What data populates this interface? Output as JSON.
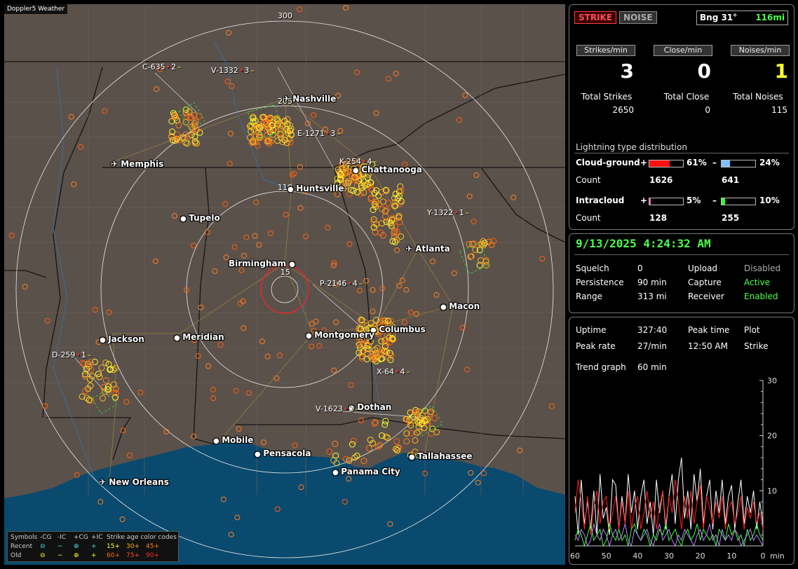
{
  "map": {
    "title": "Doppler5 Weather",
    "range_rings": [
      "300",
      "205",
      "110",
      "15"
    ],
    "cities": [
      {
        "name": "Nashville",
        "airport": true
      },
      {
        "name": "Memphis",
        "airport": true
      },
      {
        "name": "Chattanooga",
        "airport": false
      },
      {
        "name": "Huntsville",
        "airport": false
      },
      {
        "name": "Tupelo",
        "airport": false
      },
      {
        "name": "Atlanta",
        "airport": true
      },
      {
        "name": "Birmingham",
        "airport": false
      },
      {
        "name": "Macon",
        "airport": false
      },
      {
        "name": "Columbus",
        "airport": false
      },
      {
        "name": "Montgomery",
        "airport": false
      },
      {
        "name": "Jackson",
        "airport": false
      },
      {
        "name": "Meridian",
        "airport": false
      },
      {
        "name": "Dothan",
        "airport": false
      },
      {
        "name": "Mobile",
        "airport": false
      },
      {
        "name": "Pensacola",
        "airport": false
      },
      {
        "name": "Tallahassee",
        "airport": false
      },
      {
        "name": "Panama City",
        "airport": false
      },
      {
        "name": "New Orleans",
        "airport": true
      }
    ],
    "storm_labels": [
      {
        "label": "C-635",
        "value": "2"
      },
      {
        "label": "V-1332",
        "value": "3"
      },
      {
        "label": "E-1271",
        "value": "3"
      },
      {
        "label": "K-254",
        "value": "4"
      },
      {
        "label": "Y-1322",
        "value": "1"
      },
      {
        "label": "P-2146",
        "value": "4"
      },
      {
        "label": "D-259",
        "value": "1"
      },
      {
        "label": "X-64",
        "value": "4"
      },
      {
        "label": "V-1623",
        "value": "2"
      }
    ],
    "legend": {
      "headers": [
        "Symbols",
        "-CG",
        "-IC",
        "+CG",
        "+IC",
        "Strike age color codes"
      ],
      "rows": [
        {
          "label": "Recent",
          "codes": [
            "15+",
            "30+",
            "45+"
          ]
        },
        {
          "label": "Old",
          "codes": [
            "60+",
            "75+",
            "90+"
          ]
        }
      ]
    }
  },
  "stats": {
    "strike_button": "STRIKE",
    "noise_button": "NOISE",
    "bearing": "Bng 31°",
    "distance": "116mi",
    "rates": [
      {
        "label": "Strikes/min",
        "value": "3"
      },
      {
        "label": "Close/min",
        "value": "0"
      },
      {
        "label": "Noises/min",
        "value": "1"
      }
    ],
    "totals": [
      {
        "label": "Total Strikes",
        "value": "2650"
      },
      {
        "label": "Total Close",
        "value": "0"
      },
      {
        "label": "Total Noises",
        "value": "115"
      }
    ],
    "distribution": {
      "title": "Lightning type distribution",
      "cloud_ground": {
        "label": "Cloud-ground",
        "pos_pct": "61%",
        "neg_pct": "24%",
        "pos_frac": 0.61,
        "neg_frac": 0.24,
        "pos_count": "1626",
        "neg_count": "641"
      },
      "intracloud": {
        "label": "Intracloud",
        "pos_pct": "5%",
        "neg_pct": "10%",
        "pos_frac": 0.05,
        "neg_frac": 0.1,
        "pos_count": "128",
        "neg_count": "255"
      },
      "count_label": "Count",
      "plus": "+",
      "minus": "–"
    }
  },
  "status": {
    "datetime": "9/13/2025 4:24:32 AM",
    "rows": [
      {
        "k1": "Squelch",
        "v1": "0",
        "k2": "Upload",
        "v2": "Disabled"
      },
      {
        "k1": "Persistence",
        "v1": "90 min",
        "k2": "Capture",
        "v2": "Active"
      },
      {
        "k1": "Range",
        "v1": "313 mi",
        "k2": "Receiver",
        "v2": "Enabled"
      }
    ]
  },
  "trend": {
    "uptime_label": "Uptime",
    "uptime": "327:40",
    "peak_time_label": "Peak time",
    "peak_time": "12:50 AM",
    "plot_label": "Plot",
    "plot": "Strike",
    "peak_rate_label": "Peak rate",
    "peak_rate": "27/min",
    "trend_label": "Trend graph",
    "trend_value": "60 min",
    "y_ticks": [
      "30",
      "20",
      "10"
    ],
    "x_ticks": [
      "60",
      "50",
      "40",
      "30",
      "20",
      "10",
      "0"
    ],
    "x_unit": "min",
    "y_range": [
      0,
      30
    ],
    "chart_data": {
      "type": "line",
      "x": [
        60,
        59,
        58,
        57,
        56,
        55,
        54,
        53,
        52,
        51,
        50,
        49,
        48,
        47,
        46,
        45,
        44,
        43,
        42,
        41,
        40,
        39,
        38,
        37,
        36,
        35,
        34,
        33,
        32,
        31,
        30,
        29,
        28,
        27,
        26,
        25,
        24,
        23,
        22,
        21,
        20,
        19,
        18,
        17,
        16,
        15,
        14,
        13,
        12,
        11,
        10,
        9,
        8,
        7,
        6,
        5,
        4,
        3,
        2,
        1,
        0
      ],
      "series": [
        {
          "color": "#ffffff",
          "values": [
            9,
            2,
            12,
            4,
            8,
            3,
            10,
            2,
            13,
            5,
            7,
            2,
            12,
            11,
            3,
            9,
            4,
            13,
            6,
            10,
            3,
            9,
            12,
            4,
            8,
            2,
            12,
            6,
            10,
            3,
            9,
            13,
            4,
            12,
            16,
            5,
            10,
            3,
            13,
            8,
            14,
            4,
            9,
            12,
            3,
            10,
            6,
            12,
            4,
            9,
            11,
            3,
            8,
            12,
            4,
            9,
            6,
            10,
            3,
            8,
            4
          ]
        },
        {
          "color": "#ff2020",
          "values": [
            6,
            12,
            8,
            3,
            9,
            2,
            7,
            10,
            4,
            8,
            9,
            3,
            6,
            9,
            3,
            8,
            4,
            10,
            3,
            7,
            9,
            3,
            6,
            10,
            5,
            8,
            3,
            7,
            10,
            4,
            9,
            6,
            12,
            8,
            3,
            9,
            5,
            10,
            4,
            8,
            11,
            3,
            9,
            7,
            4,
            8,
            5,
            9,
            3,
            7,
            8,
            4,
            6,
            9,
            3,
            7,
            5,
            8,
            4,
            6,
            3
          ]
        },
        {
          "color": "#40ff40",
          "values": [
            1,
            3,
            2,
            0,
            2,
            4,
            1,
            2,
            3,
            0,
            1,
            4,
            2,
            1,
            3,
            1,
            2,
            0,
            3,
            4,
            2,
            1,
            3,
            2,
            0,
            2,
            1,
            3,
            2,
            4,
            1,
            2,
            3,
            1,
            0,
            2,
            3,
            1,
            2,
            4,
            1,
            3,
            2,
            1,
            2,
            0,
            3,
            2,
            1,
            4,
            2,
            3,
            1,
            2,
            0,
            3,
            1,
            2,
            4,
            2,
            1
          ]
        },
        {
          "color": "#c080ff",
          "values": [
            2,
            1,
            3,
            2,
            0,
            1,
            4,
            2,
            1,
            3,
            2,
            0,
            2,
            3,
            1,
            2,
            4,
            1,
            0,
            3,
            2,
            1,
            2,
            3,
            1,
            0,
            2,
            4,
            1,
            2,
            3,
            1,
            0,
            2,
            1,
            3,
            2,
            1,
            0,
            2,
            3,
            1,
            2,
            4,
            1,
            2,
            0,
            3,
            1,
            2,
            1,
            3,
            2,
            0,
            1,
            2,
            3,
            1,
            2,
            1,
            0
          ]
        }
      ]
    }
  },
  "colors": {
    "accent_green": "#4cff4c",
    "accent_yellow": "#ffff30",
    "strike_red": "#ff4040",
    "cg_pos_fill": "#ff1010",
    "cg_neg_fill": "#80c0ff",
    "ic_pos_fill": "#ff60c0",
    "ic_neg_fill": "#30ff30"
  }
}
